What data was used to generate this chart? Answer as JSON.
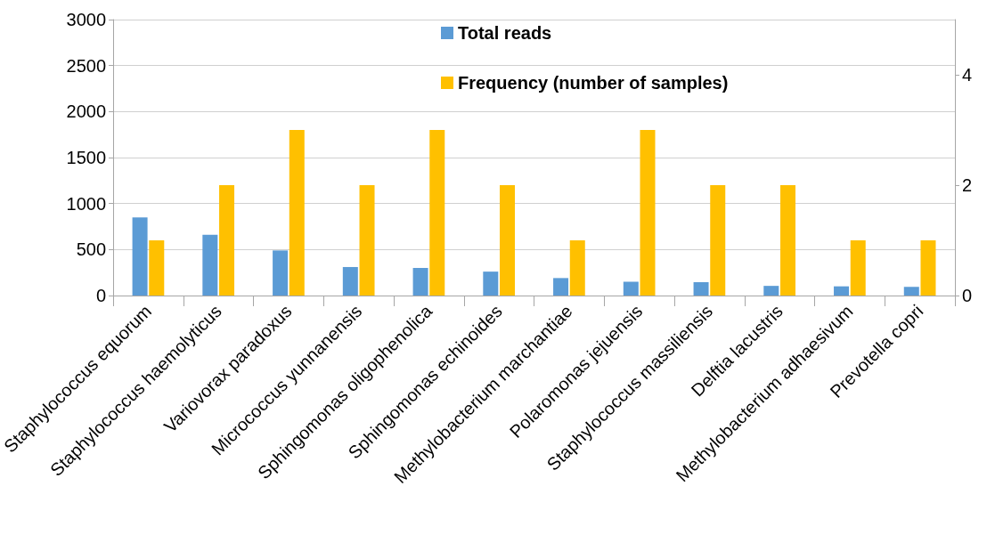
{
  "chart_data": {
    "type": "bar",
    "categories": [
      "Staphylococcus equorum",
      "Staphylococcus haemolyticus",
      "Variovorax paradoxus",
      "Micrococcus yunnanensis",
      "Sphingomonas oligophenolica",
      "Sphingomonas echinoides",
      "Methylobacterium marchantiae",
      "Polaromonas jejuensis",
      "Staphylococcus massiliensis",
      "Delftia lacustris",
      "Methylobacterium adhaesivum",
      "Prevotella copri"
    ],
    "series": [
      {
        "name": "Total reads",
        "color": "#5b9bd5",
        "values": [
          850,
          660,
          490,
          310,
          300,
          260,
          190,
          150,
          145,
          105,
          100,
          95
        ]
      },
      {
        "name": "Frequency (number of samples)",
        "color": "#ffc000",
        "axis": "y2",
        "values": [
          1,
          2,
          3,
          2,
          3,
          2,
          1,
          3,
          2,
          2,
          1,
          1
        ]
      }
    ],
    "ylim": [
      0,
      3000
    ],
    "yticks": [
      0,
      500,
      1000,
      1500,
      2000,
      2500,
      3000
    ],
    "y2lim": [
      0,
      5
    ],
    "y2ticks": [
      0,
      2,
      4
    ],
    "grid": "y",
    "legend": "top"
  }
}
